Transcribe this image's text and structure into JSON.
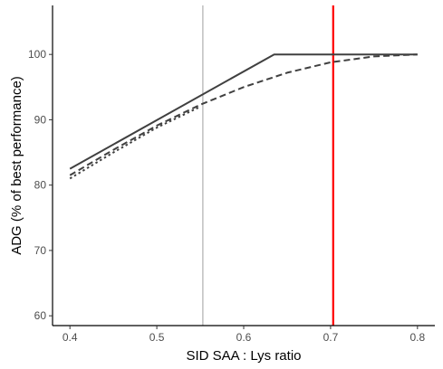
{
  "chart_data": {
    "type": "line",
    "xlabel": "SID SAA : Lys ratio",
    "ylabel": "ADG (% of best performance)",
    "xlim": [
      0.38,
      0.82
    ],
    "ylim": [
      58.5,
      107.5
    ],
    "x_ticks": [
      0.4,
      0.5,
      0.6,
      0.7,
      0.8
    ],
    "x_tick_labels": [
      "0.4",
      "0.5",
      "0.6",
      "0.7",
      "0.8"
    ],
    "y_ticks": [
      60,
      70,
      80,
      90,
      100
    ],
    "y_tick_labels": [
      "60",
      "70",
      "80",
      "90",
      "100"
    ],
    "grid": false,
    "legend": "none",
    "series": [
      {
        "style": "solid",
        "color": "#404040",
        "x": [
          0.4,
          0.635,
          0.8
        ],
        "y": [
          82.5,
          100,
          100
        ]
      },
      {
        "style": "dashed",
        "color": "#404040",
        "x": [
          0.4,
          0.45,
          0.5,
          0.55,
          0.6,
          0.65,
          0.7,
          0.75,
          0.8
        ],
        "y": [
          81.5,
          85.4,
          89.1,
          92.3,
          95.0,
          97.2,
          98.8,
          99.7,
          100
        ]
      },
      {
        "style": "dotted",
        "color": "#404040",
        "x": [
          0.4,
          0.45,
          0.5,
          0.55
        ],
        "y": [
          81.0,
          85.0,
          88.8,
          92.0
        ]
      }
    ],
    "vlines": [
      {
        "x": 0.553,
        "color": "#9e9e9e"
      },
      {
        "x": 0.703,
        "color": "#ff0000"
      }
    ]
  }
}
